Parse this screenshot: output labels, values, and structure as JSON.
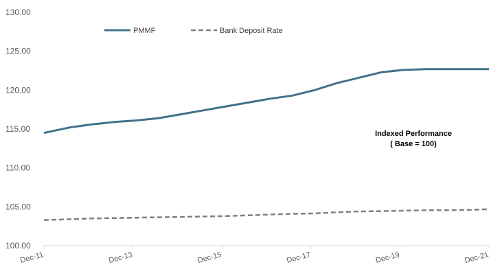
{
  "chart_data": {
    "type": "line",
    "title": "",
    "xlabel": "",
    "ylabel": "",
    "x_ticks": [
      "Dec-11",
      "Dec-13",
      "Dec-15",
      "Dec-17",
      "Dec-19",
      "Dec-21"
    ],
    "x_range": [
      2011.917,
      2021.917
    ],
    "y_ticks": [
      "100.00",
      "105.00",
      "110.00",
      "115.00",
      "120.00",
      "125.00",
      "130.00"
    ],
    "ylim": [
      100,
      130
    ],
    "grid": false,
    "legend": {
      "placement": "top-left",
      "orientation": "horizontal"
    },
    "annotation": [
      "Indexed Performance",
      "( Base = 100)"
    ],
    "series": [
      {
        "name": "PMMF",
        "color": "#41718a",
        "style": "solid",
        "x": [
          2011.917,
          2012.5,
          2013.0,
          2013.5,
          2014.0,
          2014.5,
          2015.0,
          2015.5,
          2016.0,
          2016.5,
          2017.0,
          2017.5,
          2018.0,
          2018.5,
          2019.0,
          2019.5,
          2020.0,
          2020.5,
          2021.0,
          2021.5,
          2021.917
        ],
        "values": [
          114.5,
          115.2,
          115.6,
          115.9,
          116.1,
          116.4,
          116.9,
          117.4,
          117.9,
          118.4,
          118.9,
          119.3,
          120.0,
          120.9,
          121.6,
          122.3,
          122.6,
          122.7,
          122.7,
          122.7,
          122.7
        ]
      },
      {
        "name": "Bank Deposit Rate",
        "color": "#7f7f7f",
        "style": "dashed",
        "x": [
          2011.917,
          2012.5,
          2013.0,
          2013.5,
          2014.0,
          2014.5,
          2015.0,
          2015.5,
          2016.0,
          2016.5,
          2017.0,
          2017.5,
          2018.0,
          2018.5,
          2019.0,
          2019.5,
          2020.0,
          2020.5,
          2021.0,
          2021.5,
          2021.917
        ],
        "values": [
          103.3,
          103.4,
          103.5,
          103.55,
          103.6,
          103.65,
          103.7,
          103.75,
          103.8,
          103.9,
          104.0,
          104.1,
          104.15,
          104.3,
          104.4,
          104.45,
          104.5,
          104.55,
          104.55,
          104.6,
          104.7
        ]
      }
    ]
  }
}
